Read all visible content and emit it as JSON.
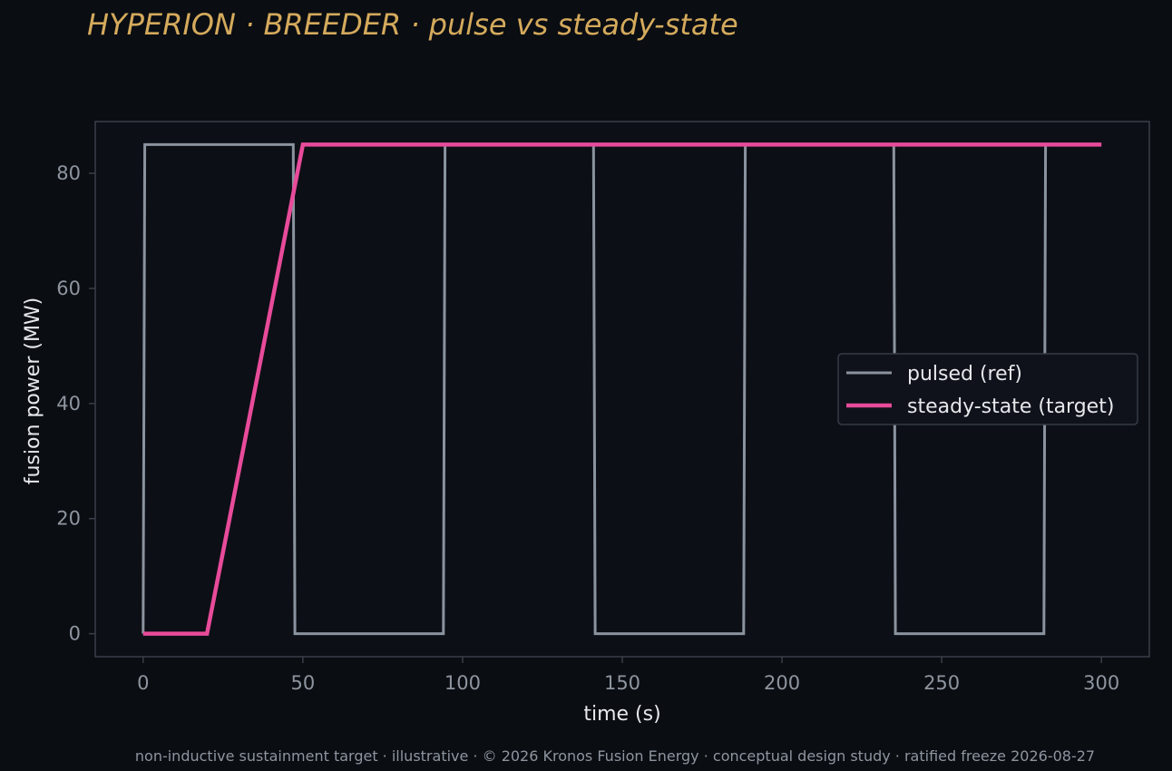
{
  "chart_data": {
    "type": "line",
    "title": "HYPERION · BREEDER  ·  pulse vs steady-state",
    "xlabel": "time (s)",
    "ylabel": "fusion power (MW)",
    "footer": "non-inductive sustainment target · illustrative · © 2026 Kronos Fusion Energy · conceptual design study · ratified freeze 2026-08-27",
    "xlim": [
      -15,
      315
    ],
    "ylim": [
      -4,
      89
    ],
    "xticks": [
      0,
      50,
      100,
      150,
      200,
      250,
      300
    ],
    "yticks": [
      0,
      20,
      40,
      60,
      80
    ],
    "grid": false,
    "legend_position": "center-right",
    "colors": {
      "background": "#0a0d12",
      "plot_background": "#0d0f16",
      "frame": "#3a3f48"
    },
    "series": [
      {
        "name": "pulsed (ref)",
        "color": "#8a939e",
        "x": [
          0,
          0.5,
          47,
          47.5,
          94,
          94.5,
          141,
          141.5,
          188,
          188.5,
          235,
          235.5,
          282,
          282.5
        ],
        "y": [
          0,
          85,
          85,
          0,
          0,
          85,
          85,
          0,
          0,
          85,
          85,
          0,
          0,
          85
        ]
      },
      {
        "name": "steady-state (target)",
        "color": "#e84b9a",
        "x": [
          0,
          20,
          50,
          300
        ],
        "y": [
          0,
          0,
          85,
          85
        ]
      }
    ]
  }
}
